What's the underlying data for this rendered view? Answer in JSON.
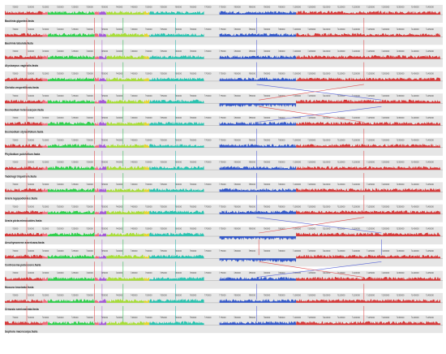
{
  "viewer": {
    "title": ""
  },
  "colors": {
    "track_background": "#e6e6e6",
    "block_red": "#d63b3b",
    "block_green": "#2fcf4b",
    "block_lightgreen": "#a6dd37",
    "block_cyan": "#2bc3b0",
    "block_blue": "#3559c9",
    "block_pink": "#f06a78",
    "block_purple": "#a35ad6",
    "block_yellow": "#e4d72c",
    "connector_red": "#e05252",
    "connector_blue": "#5b67d8",
    "connector_purple": "#b06ad9",
    "connector_green": "#3bbf5a",
    "connector_cyan": "#33b8b0"
  },
  "tick_labels": [
    "5000",
    "10000",
    "15000",
    "20000",
    "25000",
    "30000",
    "35000",
    "40000",
    "45000",
    "50000",
    "55000",
    "60000",
    "65000",
    "70000",
    "75000",
    "80000",
    "85000",
    "90000",
    "95000",
    "100000",
    "105000",
    "110000",
    "115000",
    "120000",
    "125000",
    "130000",
    "135000",
    "140000",
    "145000",
    "150000"
  ],
  "tracks": [
    {
      "name": "Bauhinia gigantea.fasta",
      "reversed_block": false
    },
    {
      "name": "Bauhinia tabulata.fasta",
      "reversed_block": false
    },
    {
      "name": "Alysicarpus vaginalis.fasta",
      "reversed_block": false
    },
    {
      "name": "Christia vespertilionis.fasta",
      "reversed_block": false
    },
    {
      "name": "Desmodium heterocarpon.fasta",
      "reversed_block": true
    },
    {
      "name": "Desmodium styracifolium.fasta",
      "reversed_block": false
    },
    {
      "name": "Phyllodium pulchellum.fasta",
      "reversed_block": false
    },
    {
      "name": "Tadehagi triquetrum.fasta",
      "reversed_block": false
    },
    {
      "name": "Uraria lagopodioides.fasta",
      "reversed_block": false
    },
    {
      "name": "Uraria picta mimosoides.fasta",
      "reversed_block": false
    },
    {
      "name": "Aeschynomene americana.fasta",
      "reversed_block": true
    },
    {
      "name": "Centrosema pubescens.fasta",
      "reversed_block": true
    },
    {
      "name": "Mucuna bracteata.fasta",
      "reversed_block": false
    },
    {
      "name": "Ormosia semicastrata.fasta",
      "reversed_block": false
    },
    {
      "name": "Sophora macrocarpa.fasta",
      "reversed_block": false
    }
  ]
}
